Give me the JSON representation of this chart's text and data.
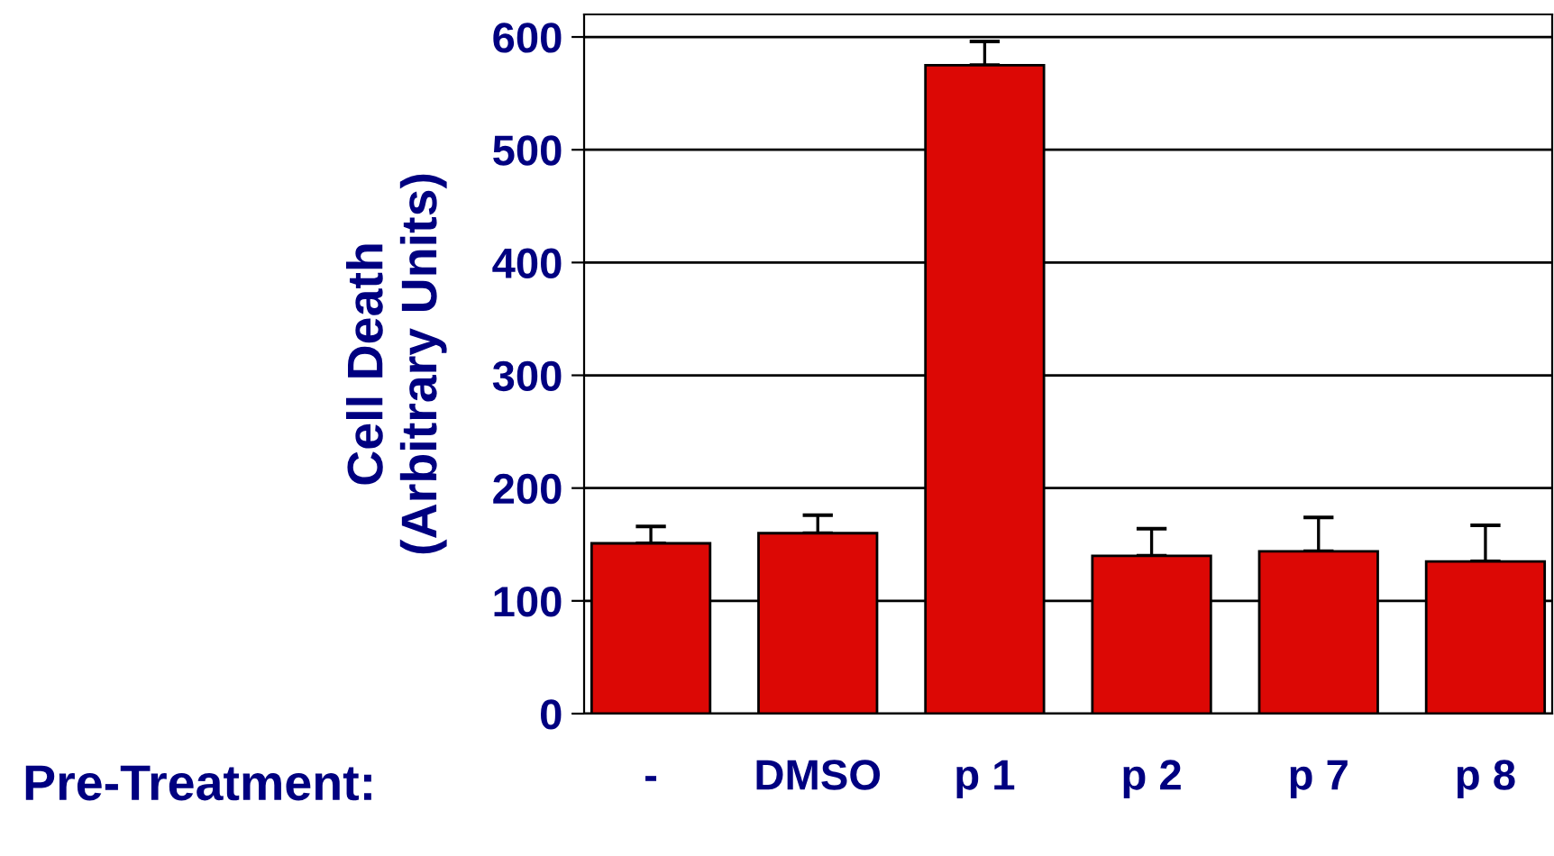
{
  "chart_data": {
    "type": "bar",
    "ylabel": "Cell Death\n(Arbitrary Units)",
    "xlabel": "Pre-Treatment:",
    "categories": [
      "-",
      "DMSO",
      "p 1",
      "p 2",
      "p 7",
      "p 8"
    ],
    "values": [
      151,
      160,
      575,
      140,
      144,
      135
    ],
    "errors": [
      [
        151,
        166
      ],
      [
        160,
        176
      ],
      [
        575,
        596
      ],
      [
        140,
        164
      ],
      [
        144,
        174
      ],
      [
        135,
        167
      ]
    ],
    "color": "#dc0805",
    "ylim": [
      0,
      620
    ],
    "yticks": [
      0,
      100,
      200,
      300,
      400,
      500,
      600
    ],
    "grid": "y",
    "legend": false
  }
}
